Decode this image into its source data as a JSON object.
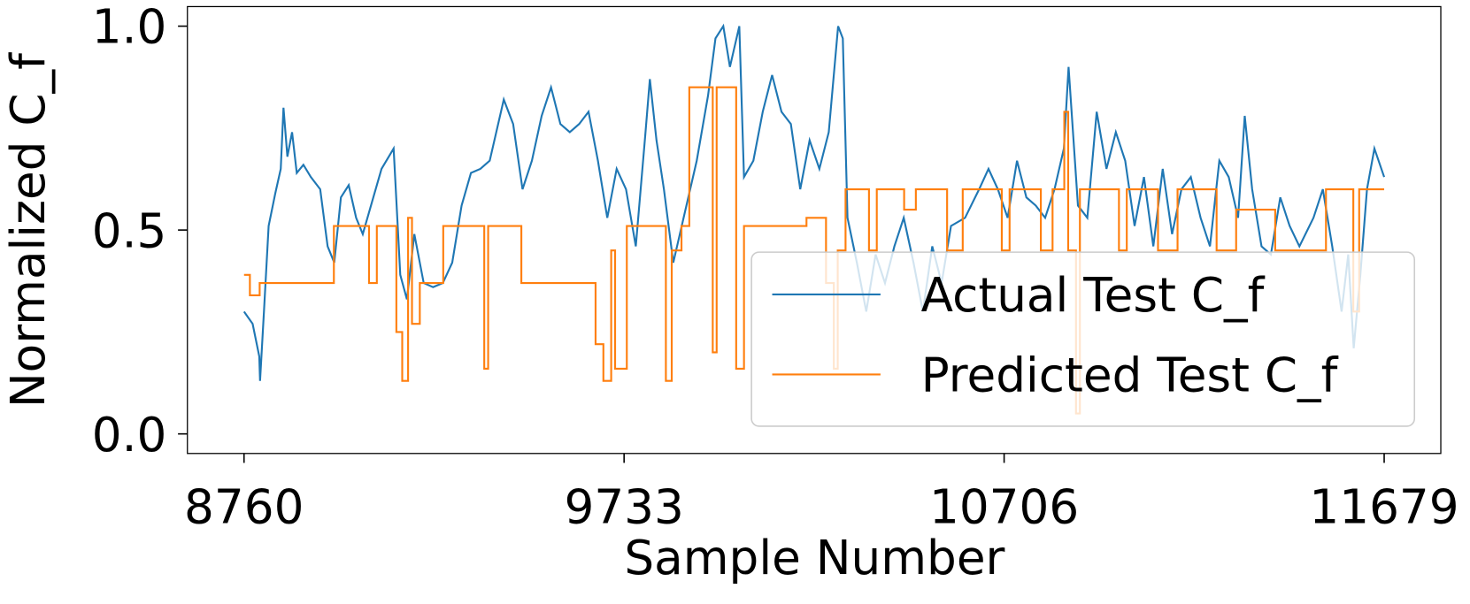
{
  "chart_data": {
    "type": "line",
    "xlabel": "Sample Number",
    "ylabel": "Normalized C_f",
    "xlim": [
      8615,
      11824
    ],
    "ylim": [
      -0.048,
      1.048
    ],
    "xticks": [
      8760,
      9733,
      10706,
      11679
    ],
    "yticks": [
      {
        "value": 0,
        "label": "0.0"
      },
      {
        "value": 0.5,
        "label": "0.5"
      },
      {
        "value": 1,
        "label": "1.0"
      }
    ],
    "legend": "lower right",
    "series": [
      {
        "name": "Actual Test C_f",
        "color": "#1f77b4",
        "drawstyle": "default",
        "x": [
          8760,
          8782,
          8799,
          8801,
          8811,
          8823,
          8840,
          8854,
          8861,
          8871,
          8883,
          8895,
          8912,
          8931,
          8955,
          8974,
          8991,
          9008,
          9028,
          9047,
          9064,
          9088,
          9112,
          9143,
          9160,
          9177,
          9196,
          9220,
          9244,
          9269,
          9293,
          9317,
          9341,
          9365,
          9389,
          9425,
          9449,
          9473,
          9497,
          9522,
          9546,
          9570,
          9594,
          9618,
          9642,
          9666,
          9690,
          9714,
          9738,
          9763,
          9787,
          9799,
          9816,
          9835,
          9859,
          9883,
          9919,
          9948,
          9967,
          9987,
          10004,
          10028,
          10040,
          10064,
          10088,
          10112,
          10136,
          10160,
          10184,
          10208,
          10233,
          10257,
          10281,
          10293,
          10305,
          10329,
          10353,
          10377,
          10401,
          10425,
          10449,
          10474,
          10498,
          10522,
          10546,
          10570,
          10606,
          10642,
          10666,
          10690,
          10715,
          10739,
          10763,
          10787,
          10811,
          10835,
          10859,
          10871,
          10895,
          10919,
          10943,
          10968,
          10992,
          11016,
          11040,
          11064,
          11088,
          11112,
          11136,
          11160,
          11184,
          11209,
          11233,
          11257,
          11281,
          11305,
          11322,
          11341,
          11365,
          11389,
          11413,
          11437,
          11462,
          11498,
          11522,
          11546,
          11570,
          11587,
          11601,
          11618,
          11635,
          11654,
          11679
        ],
        "values": [
          0.3,
          0.27,
          0.19,
          0.13,
          0.3,
          0.51,
          0.59,
          0.65,
          0.8,
          0.68,
          0.74,
          0.64,
          0.66,
          0.63,
          0.6,
          0.46,
          0.42,
          0.58,
          0.61,
          0.53,
          0.49,
          0.57,
          0.65,
          0.7,
          0.39,
          0.33,
          0.49,
          0.37,
          0.36,
          0.37,
          0.42,
          0.56,
          0.64,
          0.65,
          0.67,
          0.82,
          0.76,
          0.6,
          0.67,
          0.78,
          0.85,
          0.76,
          0.74,
          0.76,
          0.79,
          0.67,
          0.53,
          0.65,
          0.6,
          0.46,
          0.73,
          0.87,
          0.72,
          0.6,
          0.42,
          0.52,
          0.67,
          0.83,
          0.97,
          1.0,
          0.9,
          1.0,
          0.63,
          0.67,
          0.79,
          0.88,
          0.79,
          0.76,
          0.6,
          0.72,
          0.65,
          0.74,
          1.0,
          0.97,
          0.53,
          0.42,
          0.3,
          0.44,
          0.37,
          0.46,
          0.53,
          0.42,
          0.3,
          0.46,
          0.37,
          0.51,
          0.53,
          0.6,
          0.65,
          0.6,
          0.53,
          0.67,
          0.58,
          0.56,
          0.53,
          0.6,
          0.7,
          0.9,
          0.56,
          0.53,
          0.79,
          0.65,
          0.74,
          0.67,
          0.51,
          0.63,
          0.46,
          0.65,
          0.49,
          0.6,
          0.63,
          0.53,
          0.46,
          0.67,
          0.63,
          0.53,
          0.78,
          0.6,
          0.46,
          0.44,
          0.58,
          0.51,
          0.46,
          0.53,
          0.6,
          0.46,
          0.3,
          0.44,
          0.21,
          0.39,
          0.6,
          0.7,
          0.63
        ]
      },
      {
        "name": "Predicted Test C_f",
        "color": "#ff7f0e",
        "drawstyle": "steps-post",
        "x": [
          8760,
          8775,
          8800,
          8870,
          8990,
          9080,
          9100,
          9150,
          9165,
          9180,
          9190,
          9210,
          9270,
          9375,
          9385,
          9470,
          9660,
          9680,
          9700,
          9710,
          9740,
          9840,
          9855,
          9880,
          9900,
          9960,
          9970,
          10020,
          10040,
          10200,
          10250,
          10270,
          10280,
          10300,
          10360,
          10380,
          10450,
          10480,
          10560,
          10600,
          10700,
          10720,
          10800,
          10830,
          10860,
          10870,
          10890,
          10900,
          11000,
          11020,
          11100,
          11150,
          11250,
          11300,
          11400,
          11530,
          11600,
          11615,
          11679
        ],
        "values": [
          0.39,
          0.34,
          0.37,
          0.37,
          0.51,
          0.37,
          0.51,
          0.25,
          0.13,
          0.53,
          0.27,
          0.37,
          0.51,
          0.16,
          0.51,
          0.37,
          0.22,
          0.13,
          0.45,
          0.16,
          0.51,
          0.13,
          0.45,
          0.51,
          0.85,
          0.2,
          0.85,
          0.16,
          0.51,
          0.53,
          0.37,
          0.16,
          0.45,
          0.6,
          0.45,
          0.6,
          0.55,
          0.6,
          0.45,
          0.6,
          0.45,
          0.6,
          0.45,
          0.6,
          0.79,
          0.45,
          0.05,
          0.6,
          0.45,
          0.6,
          0.45,
          0.6,
          0.45,
          0.55,
          0.45,
          0.6,
          0.3,
          0.6,
          0.6
        ]
      }
    ]
  }
}
